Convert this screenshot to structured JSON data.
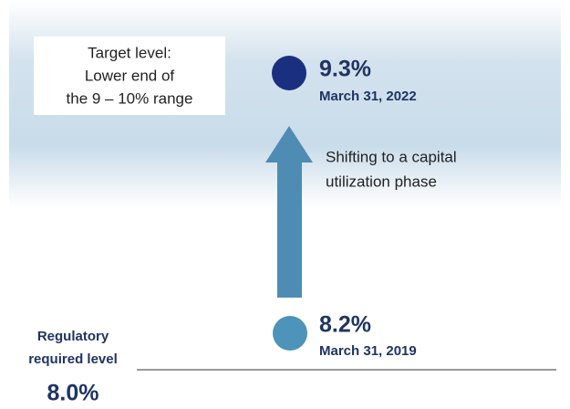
{
  "target": {
    "lines": [
      "Target level:",
      "Lower end of",
      "the 9 – 10% range"
    ]
  },
  "points": [
    {
      "value": "9.3%",
      "date": "March 31, 2022"
    },
    {
      "value": "8.2%",
      "date": "March 31, 2019"
    }
  ],
  "annotation": {
    "lines": [
      "Shifting to a capital",
      "utilization phase"
    ]
  },
  "regulatory": {
    "lines": [
      "Regulatory",
      "required level"
    ],
    "value": "8.0%"
  }
}
